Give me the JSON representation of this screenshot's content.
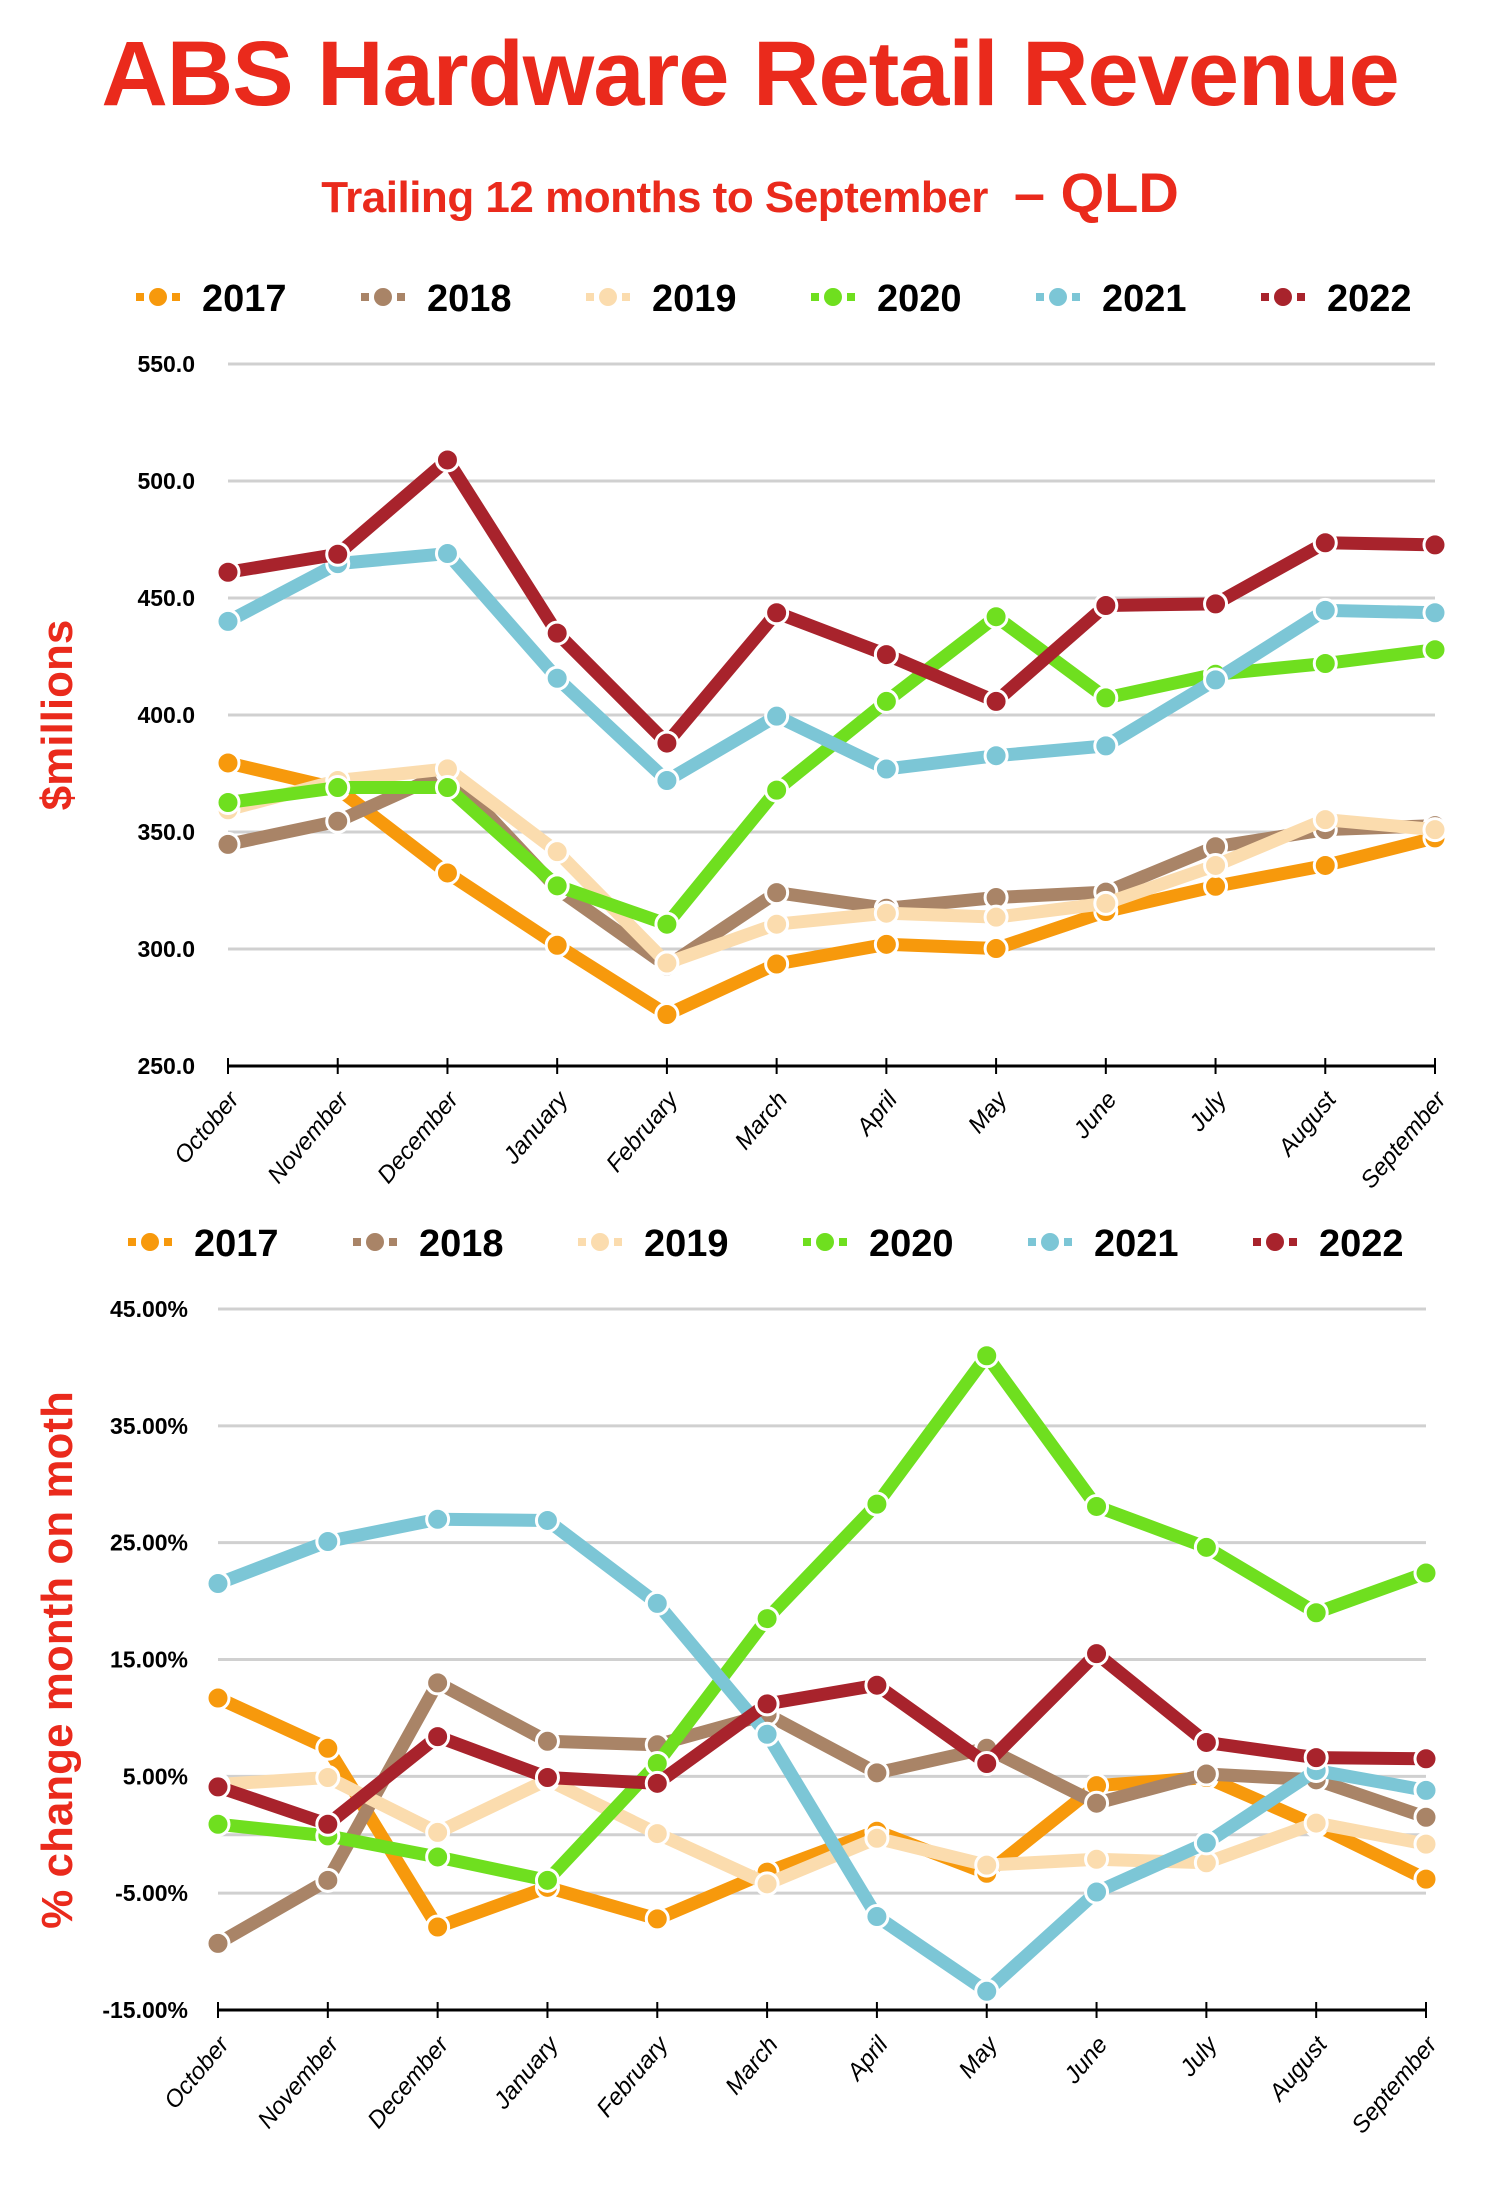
{
  "header": {
    "title": "ABS Hardware Retail Revenue",
    "subtitle": "Trailing 12 months to September",
    "region": "– QLD"
  },
  "colors": {
    "title": "#ea2a1c",
    "grid": "#d0d0d0",
    "axis": "#000000"
  },
  "chart_data": [
    {
      "type": "line",
      "title": "ABS Hardware Retail Revenue",
      "ylabel": "$millions",
      "xlabel": "",
      "ylim": [
        250,
        550
      ],
      "yticks": [
        250,
        300,
        350,
        400,
        450,
        500,
        550
      ],
      "ytick_labels": [
        "250.0",
        "300.0",
        "350.0",
        "400.0",
        "450.0",
        "500.0",
        "550.0"
      ],
      "grid": true,
      "legend": "top",
      "categories": [
        "October",
        "November",
        "December",
        "January",
        "February",
        "March",
        "April",
        "May",
        "June",
        "July",
        "August",
        "September"
      ],
      "series": [
        {
          "name": "2017",
          "color": "#f7990c",
          "values": [
            379.5,
            368.5,
            332.5,
            301.6,
            272.0,
            293.6,
            302.0,
            300.2,
            316.0,
            326.8,
            335.7,
            347.5
          ]
        },
        {
          "name": "2018",
          "color": "#a98467",
          "values": [
            344.7,
            354.6,
            375.7,
            325.8,
            292.7,
            324.1,
            317.4,
            322.0,
            324.3,
            343.7,
            351.0,
            352.7
          ]
        },
        {
          "name": "2019",
          "color": "#fbdcae",
          "values": [
            359.5,
            372.0,
            377.0,
            341.6,
            294.0,
            310.6,
            315.3,
            313.6,
            319.5,
            335.7,
            355.3,
            351.0
          ]
        },
        {
          "name": "2020",
          "color": "#6fdf1f",
          "values": [
            362.6,
            369.0,
            369.0,
            327.0,
            310.6,
            367.9,
            405.8,
            442.0,
            407.3,
            417.4,
            422.0,
            427.9
          ]
        },
        {
          "name": "2021",
          "color": "#7cc6d6",
          "values": [
            440.0,
            464.7,
            469.0,
            415.7,
            372.0,
            399.5,
            376.9,
            382.6,
            386.8,
            415.0,
            444.7,
            443.7
          ]
        },
        {
          "name": "2022",
          "color": "#a8232c",
          "values": [
            461.0,
            468.7,
            509.0,
            435.0,
            388.0,
            443.7,
            425.8,
            405.8,
            446.8,
            447.5,
            473.6,
            472.7
          ]
        }
      ]
    },
    {
      "type": "line",
      "title": "% change month on month",
      "ylabel": "% change month on moth",
      "xlabel": "",
      "ylim": [
        -15,
        45
      ],
      "yticks": [
        -15,
        -5,
        5,
        15,
        25,
        35,
        45
      ],
      "ytick_labels": [
        "-15.00%",
        "-5.00%",
        "5.00%",
        "15.00%",
        "25.00%",
        "35.00%",
        "45.00%"
      ],
      "extra_gridlines": [
        0
      ],
      "grid": true,
      "legend": "top",
      "categories": [
        "October",
        "November",
        "December",
        "January",
        "February",
        "March",
        "April",
        "May",
        "June",
        "July",
        "August",
        "September"
      ],
      "series": [
        {
          "name": "2017",
          "color": "#f7990c",
          "values": [
            11.7,
            7.4,
            -7.9,
            -4.5,
            -7.2,
            -3.2,
            0.3,
            -3.3,
            4.2,
            4.9,
            0.8,
            -3.8
          ]
        },
        {
          "name": "2018",
          "color": "#a98467",
          "values": [
            -9.3,
            -3.9,
            13.0,
            8.0,
            7.7,
            10.3,
            5.3,
            7.4,
            2.7,
            5.2,
            4.7,
            1.5
          ]
        },
        {
          "name": "2019",
          "color": "#fbdcae",
          "values": [
            4.3,
            4.9,
            0.2,
            4.7,
            0.1,
            -4.2,
            -0.3,
            -2.6,
            -2.1,
            -2.4,
            1.0,
            -0.8
          ]
        },
        {
          "name": "2020",
          "color": "#6fdf1f",
          "values": [
            0.9,
            -0.1,
            -1.9,
            -3.9,
            6.1,
            18.5,
            28.3,
            41.0,
            28.1,
            24.6,
            19.0,
            22.4
          ]
        },
        {
          "name": "2021",
          "color": "#7cc6d6",
          "values": [
            21.5,
            25.1,
            27.0,
            26.9,
            19.8,
            8.6,
            -7.0,
            -13.4,
            -4.9,
            -0.7,
            5.5,
            3.8
          ]
        },
        {
          "name": "2022",
          "color": "#a8232c",
          "values": [
            4.1,
            0.9,
            8.4,
            4.9,
            4.4,
            11.2,
            12.8,
            6.1,
            15.5,
            7.9,
            6.6,
            6.5
          ]
        }
      ]
    }
  ]
}
